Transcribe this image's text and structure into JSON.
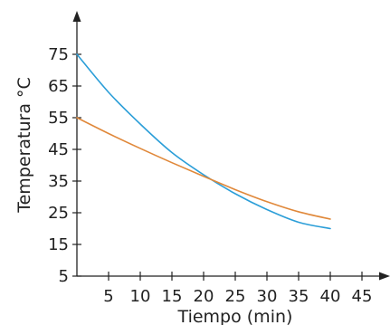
{
  "chart_data": {
    "type": "line",
    "title": "",
    "xlabel": "Tiempo (min)",
    "ylabel": "Temperatura °C",
    "x_ticks": [
      5,
      10,
      15,
      20,
      25,
      30,
      35,
      40,
      45
    ],
    "y_ticks": [
      5,
      15,
      25,
      35,
      45,
      55,
      65,
      75
    ],
    "xlim": [
      0,
      47
    ],
    "ylim": [
      5,
      84
    ],
    "grid": false,
    "series": [
      {
        "color": "#2b9ed8",
        "x": [
          0,
          5,
          10,
          15,
          20,
          25,
          30,
          35,
          40
        ],
        "y": [
          75,
          63,
          53,
          44,
          37,
          31,
          26,
          22,
          20
        ]
      },
      {
        "color": "#e0883a",
        "x": [
          0,
          5,
          10,
          15,
          20,
          25,
          30,
          35,
          40
        ],
        "y": [
          55,
          50,
          45.3,
          40.8,
          36.5,
          32.3,
          28.5,
          25.3,
          23
        ]
      }
    ]
  }
}
